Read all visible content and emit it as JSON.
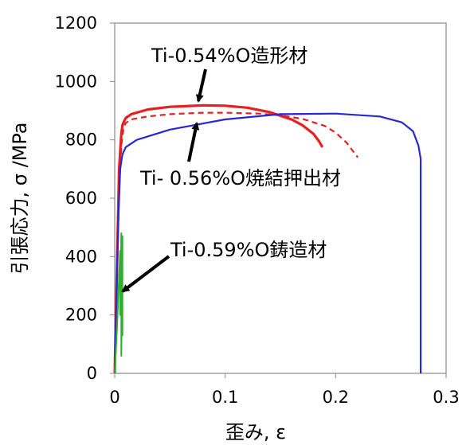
{
  "chart_data": {
    "type": "line",
    "xlabel": "歪み, ε",
    "ylabel": "引張応力, σ /MPa",
    "xlim": [
      0,
      0.3
    ],
    "ylim": [
      0,
      1200
    ],
    "x_ticks": [
      "0",
      "0.1",
      "0.2",
      "0.3"
    ],
    "y_ticks": [
      "0",
      "200",
      "400",
      "600",
      "800",
      "1000",
      "1200"
    ],
    "grid": false,
    "legend": "none",
    "series": [
      {
        "color": "#e62020",
        "style": "solid",
        "x": [
          0,
          0.004,
          0.006,
          0.007,
          0.008,
          0.01,
          0.015,
          0.03,
          0.05,
          0.08,
          0.1,
          0.12,
          0.14,
          0.16,
          0.17,
          0.18,
          0.185,
          0.188
        ],
        "y": [
          0,
          700,
          820,
          850,
          860,
          875,
          888,
          904,
          913,
          918,
          917,
          910,
          895,
          870,
          850,
          820,
          795,
          775
        ]
      },
      {
        "color": "#e62020",
        "style": "dashed",
        "x": [
          0,
          0.004,
          0.006,
          0.008,
          0.01,
          0.015,
          0.03,
          0.05,
          0.08,
          0.1,
          0.13,
          0.15,
          0.17,
          0.19,
          0.2,
          0.21,
          0.22
        ],
        "y": [
          0,
          620,
          780,
          840,
          858,
          870,
          880,
          888,
          893,
          893,
          890,
          884,
          872,
          848,
          825,
          790,
          740
        ]
      },
      {
        "color": "#2828d2",
        "style": "solid",
        "x": [
          0,
          0.003,
          0.005,
          0.007,
          0.01,
          0.02,
          0.05,
          0.1,
          0.15,
          0.2,
          0.24,
          0.26,
          0.27,
          0.275,
          0.277,
          0.277
        ],
        "y": [
          0,
          500,
          700,
          750,
          775,
          800,
          835,
          870,
          888,
          890,
          880,
          860,
          830,
          780,
          735,
          0
        ]
      },
      {
        "color": "#2fae2f",
        "style": "solid",
        "x": [
          0,
          0.002,
          0.004,
          0.005,
          0.005,
          0.006,
          0.006,
          0.007,
          0.007,
          0.006
        ],
        "y": [
          0,
          150,
          330,
          420,
          200,
          480,
          60,
          470,
          130,
          400
        ]
      }
    ],
    "annotations": [
      "Ti-0.54%O造形材",
      "Ti- 0.56%O焼結押出材",
      "Ti-0.59%O鋳造材"
    ]
  }
}
